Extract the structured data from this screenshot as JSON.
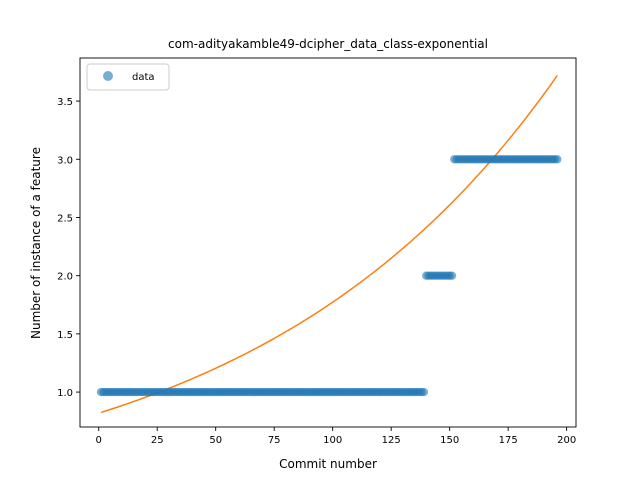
{
  "chart_data": {
    "type": "scatter",
    "title": "com-adityakamble49-dcipher_data_class-exponential",
    "xlabel": "Commit number",
    "ylabel": "Number of instance of a feature",
    "xlim": [
      -8,
      204
    ],
    "ylim": [
      0.7,
      3.87
    ],
    "xticks": [
      0,
      25,
      50,
      75,
      100,
      125,
      150,
      175,
      200
    ],
    "xtick_labels": [
      "0",
      "25",
      "50",
      "75",
      "100",
      "125",
      "150",
      "175",
      "200"
    ],
    "yticks": [
      1.0,
      1.5,
      2.0,
      2.5,
      3.0,
      3.5
    ],
    "ytick_labels": [
      "1.0",
      "1.5",
      "2.0",
      "2.5",
      "3.0",
      "3.5"
    ],
    "grid": false,
    "legend": {
      "position": "top-left",
      "entries": [
        "data"
      ]
    },
    "series": [
      {
        "name": "data",
        "kind": "points",
        "color": "#1f77b4",
        "segments": [
          {
            "x_start": 1,
            "x_end": 139,
            "y": 1.0
          },
          {
            "x_start": 140,
            "x_end": 151,
            "y": 2.0
          },
          {
            "x_start": 152,
            "x_end": 196,
            "y": 3.0
          }
        ]
      },
      {
        "kind": "fit",
        "color": "#ff7f0e",
        "x_range": [
          1,
          196
        ],
        "endpoints": {
          "y_at_1": 0.825,
          "y_at_196": 3.72
        }
      }
    ]
  }
}
